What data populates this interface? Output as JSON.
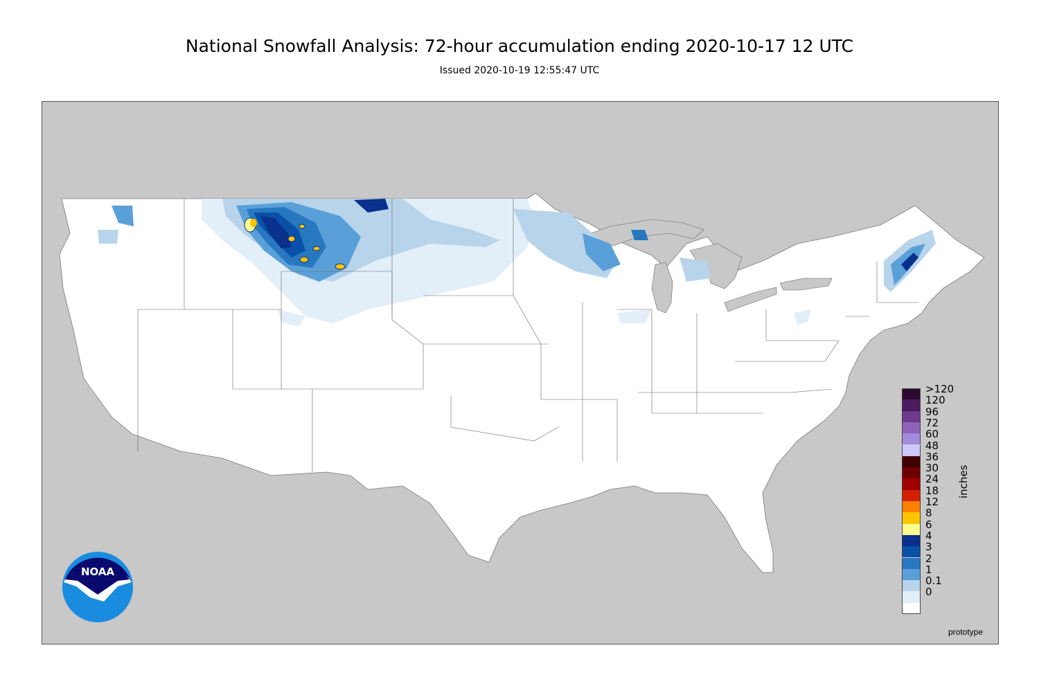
{
  "header": {
    "title": "National Snowfall Analysis: 72-hour accumulation ending 2020-10-17 12 UTC",
    "issued": "Issued 2020-10-19 12:55:47 UTC"
  },
  "map": {
    "land_color": "#ffffff",
    "background_color": "#c8c8c8",
    "water_color": "#c8c8c8",
    "border_color": "#555555"
  },
  "legend": {
    "units": "inches",
    "bins": [
      {
        "label": ">120",
        "color": "#2c0a2e"
      },
      {
        "label": "120",
        "color": "#4c1a5e"
      },
      {
        "label": "96",
        "color": "#6e3a8e"
      },
      {
        "label": "72",
        "color": "#8e62b8"
      },
      {
        "label": "60",
        "color": "#a48adc"
      },
      {
        "label": "48",
        "color": "#cfc8ff"
      },
      {
        "label": "36",
        "color": "#3e0000"
      },
      {
        "label": "30",
        "color": "#6e0000"
      },
      {
        "label": "24",
        "color": "#a00000"
      },
      {
        "label": "18",
        "color": "#d22000"
      },
      {
        "label": "12",
        "color": "#ff8000"
      },
      {
        "label": "8",
        "color": "#ffc400"
      },
      {
        "label": "6",
        "color": "#ffff90"
      },
      {
        "label": "4",
        "color": "#08308c"
      },
      {
        "label": "3",
        "color": "#0850a8"
      },
      {
        "label": "2",
        "color": "#2878c0"
      },
      {
        "label": "1",
        "color": "#5aa0d8"
      },
      {
        "label": "0.1",
        "color": "#b8d4ea"
      },
      {
        "label": "0",
        "color": "#e2eef8"
      },
      {
        "label": "",
        "color": "#ffffff"
      }
    ]
  },
  "footer": {
    "note": "prototype"
  },
  "logo": {
    "text": "NOAA",
    "colors": {
      "sky": "#0a0a6e",
      "sea": "#1a8ce0",
      "bird": "#ffffff"
    }
  }
}
